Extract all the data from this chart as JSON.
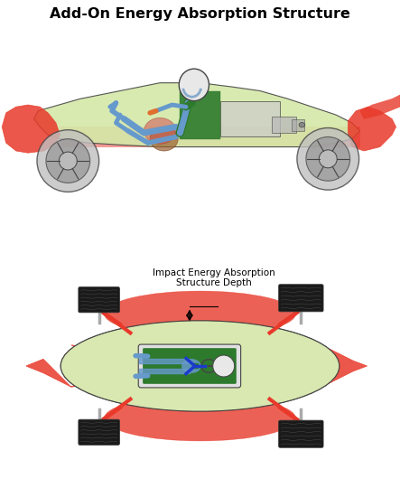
{
  "title": "Add-On Energy Absorption Structure",
  "annotation_text": "Impact Energy Absorption\nStructure Depth",
  "bg_color": "#ffffff",
  "title_fontsize": 11.5,
  "colors": {
    "red": "#e8392a",
    "light_green": "#d4e8a8",
    "dark_green": "#2d7a2d",
    "blue": "#6699cc",
    "dark_blue": "#1a3acc",
    "gray": "#888888",
    "light_gray": "#cccccc",
    "dark_gray": "#444444",
    "beige": "#d8e8b0",
    "orange": "#e07030",
    "brown_dark": "#7a4a20",
    "white": "#ffffff",
    "black": "#000000",
    "tire_black": "#1a1a1a",
    "silver": "#aaaaaa"
  }
}
